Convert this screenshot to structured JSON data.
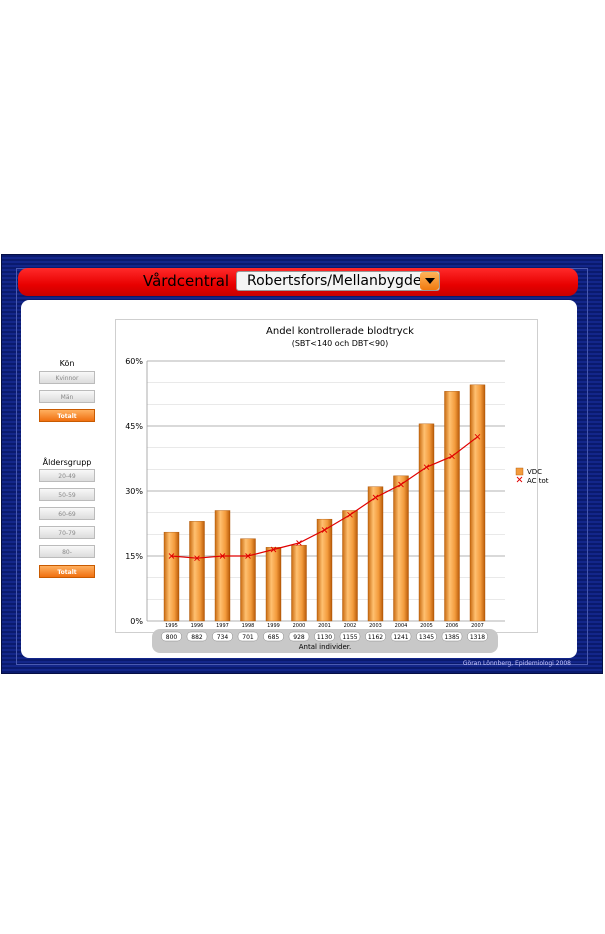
{
  "header": {
    "vardcentral_label": "Vårdcentral",
    "selected_vc": "Robertsfors/Mellanbygden"
  },
  "filters": {
    "kon_title": "Kön",
    "kon_buttons": [
      "Kvinnor",
      "Män",
      "Totalt"
    ],
    "kon_active": "Totalt",
    "alder_title": "Åldersgrupp",
    "alder_buttons": [
      "20-49",
      "50-59",
      "60-69",
      "70-79",
      "80-",
      "Totalt"
    ],
    "alder_active": "Totalt"
  },
  "footer": {
    "counts_caption": "Antal individer.",
    "credit": "Göran Lönnberg, Epidemiologi 2008"
  },
  "colors": {
    "bar": "#f39b3c",
    "line": "#e00000",
    "header": "#e80000",
    "frame": "#0a1a6e"
  },
  "chart_data": {
    "type": "bar",
    "title": "Andel kontrollerade blodtryck",
    "subtitle": "(SBT<140 och DBT<90)",
    "categories": [
      "1995",
      "1996",
      "1997",
      "1998",
      "1999",
      "2000",
      "2001",
      "2002",
      "2003",
      "2004",
      "2005",
      "2006",
      "2007"
    ],
    "series": [
      {
        "name": "VDC",
        "type": "bar",
        "values": [
          20.5,
          23,
          25.5,
          19,
          17,
          17.5,
          23.5,
          25.5,
          31,
          33.5,
          45.5,
          53,
          54.5
        ]
      },
      {
        "name": "AC tot",
        "type": "line",
        "values": [
          15,
          14.5,
          15,
          15,
          16.5,
          18,
          21,
          24.5,
          28.5,
          31.5,
          35.5,
          38,
          42.5
        ]
      }
    ],
    "counts": [
      "800",
      "882",
      "734",
      "701",
      "685",
      "928",
      "1130",
      "1155",
      "1162",
      "1241",
      "1345",
      "1385",
      "1318"
    ],
    "yticks": [
      "0%",
      "15%",
      "30%",
      "45%",
      "60%"
    ],
    "ylim": [
      0,
      60
    ],
    "grid": true,
    "legend": "right"
  }
}
